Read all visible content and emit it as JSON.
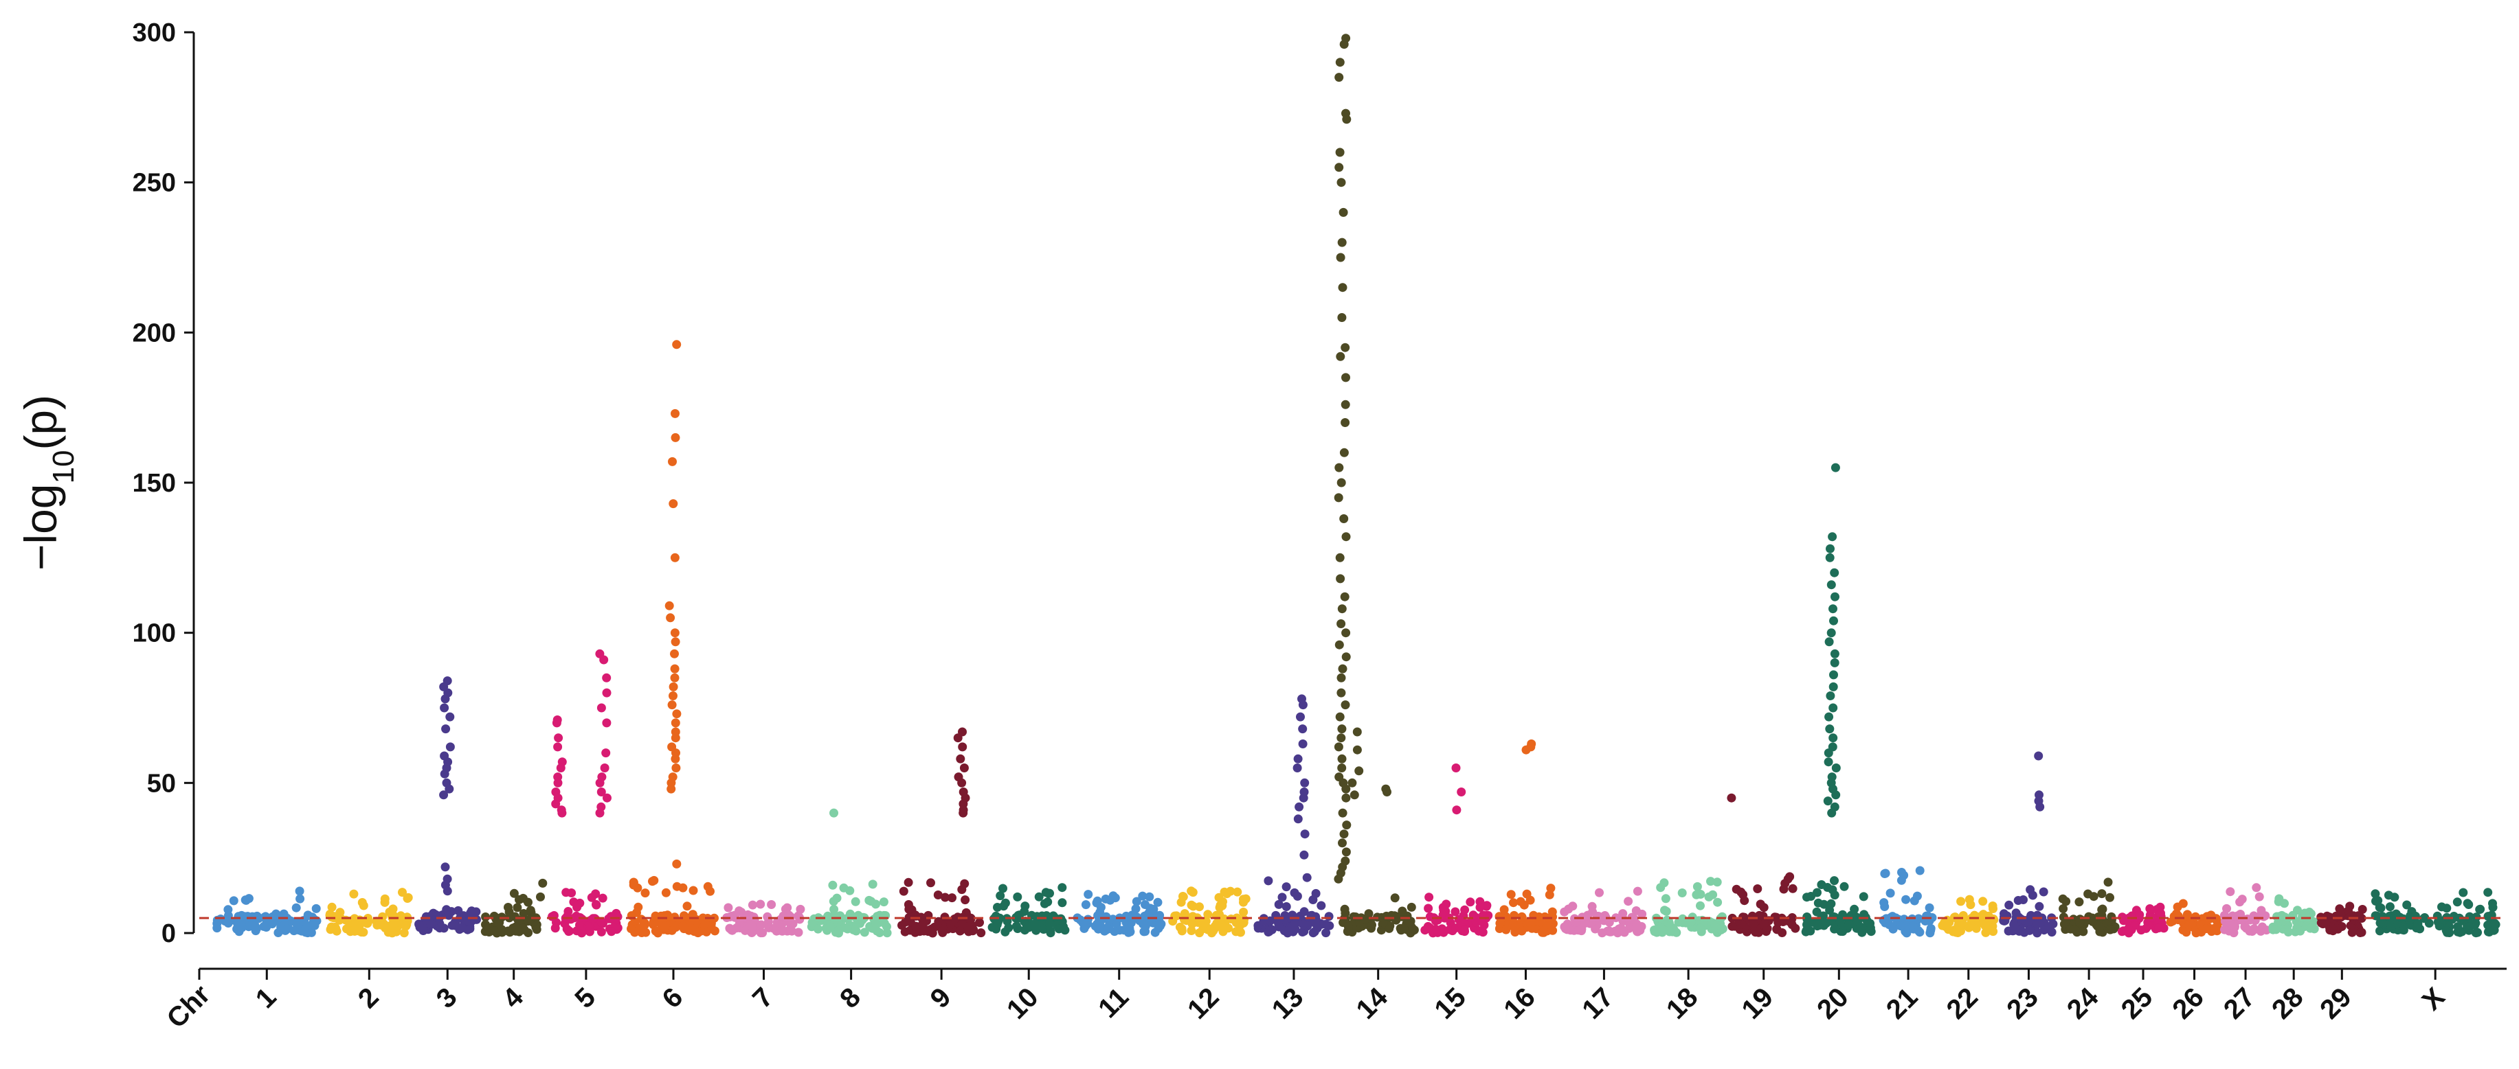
{
  "chart_data": {
    "type": "scatter",
    "subtype": "manhattan",
    "title": "",
    "ylabel": "−log10(p)",
    "ylabel_parts": {
      "prefix": "−log",
      "subscript": "10",
      "suffix": "(p)"
    },
    "xlabel": "",
    "ylim": [
      0,
      300
    ],
    "yticks": [
      0,
      50,
      100,
      150,
      200,
      250,
      300
    ],
    "x_first_label": "Chr",
    "significance_threshold": 5,
    "threshold_color": "#c0392b",
    "chromosomes": [
      {
        "label": "1",
        "color": "#4a90d0",
        "width": 1.9,
        "bg": 14,
        "peaks": []
      },
      {
        "label": "2",
        "color": "#f5c02a",
        "width": 1.5,
        "bg": 14,
        "peaks": []
      },
      {
        "label": "3",
        "color": "#4a3a8c",
        "width": 1.1,
        "bg": 8,
        "peaks": [
          {
            "pos": 0.5,
            "values": [
              84,
              82,
              80,
              78,
              75,
              72,
              68,
              62,
              59,
              57,
              55,
              53,
              50,
              48,
              46,
              22,
              18,
              16,
              14
            ]
          }
        ]
      },
      {
        "label": "4",
        "color": "#4d4a24",
        "width": 1.1,
        "bg": 17,
        "peaks": []
      },
      {
        "label": "5",
        "color": "#d81b72",
        "width": 1.3,
        "bg": 14,
        "peaks": [
          {
            "pos": 0.1,
            "values": [
              71,
              70,
              65,
              62,
              57,
              55,
              52,
              50,
              47,
              45,
              43,
              41,
              40
            ]
          },
          {
            "pos": 0.75,
            "values": [
              93,
              91,
              85,
              80,
              75,
              70,
              60,
              55,
              52,
              50,
              47,
              45,
              42,
              40
            ]
          }
        ]
      },
      {
        "label": "6",
        "color": "#e8661c",
        "width": 1.6,
        "bg": 18,
        "peaks": [
          {
            "pos": 0.5,
            "values": [
              196,
              173,
              165,
              157,
              143,
              125,
              109,
              105,
              100,
              97,
              93,
              88,
              85,
              82,
              79,
              76,
              73,
              70,
              67,
              65,
              62,
              60,
              58,
              55,
              52,
              50,
              48,
              23
            ]
          }
        ]
      },
      {
        "label": "7",
        "color": "#de7db8",
        "width": 1.4,
        "bg": 10,
        "peaks": []
      },
      {
        "label": "8",
        "color": "#7fcfa5",
        "width": 1.5,
        "bg": 17,
        "peaks": [
          {
            "pos": 0.3,
            "values": [
              40
            ]
          }
        ]
      },
      {
        "label": "9",
        "color": "#7a1a2e",
        "width": 1.5,
        "bg": 17,
        "peaks": [
          {
            "pos": 0.75,
            "values": [
              67,
              65,
              62,
              58,
              55,
              52,
              50,
              47,
              45,
              43,
              41,
              40
            ]
          }
        ]
      },
      {
        "label": "10",
        "color": "#1e6e58",
        "width": 1.4,
        "bg": 16,
        "peaks": []
      },
      {
        "label": "11",
        "color": "#4a90d0",
        "width": 1.6,
        "bg": 13,
        "peaks": []
      },
      {
        "label": "12",
        "color": "#f5c02a",
        "width": 1.4,
        "bg": 14,
        "peaks": []
      },
      {
        "label": "13",
        "color": "#4a3a8c",
        "width": 1.4,
        "bg": 20,
        "peaks": [
          {
            "pos": 0.6,
            "values": [
              78,
              76,
              72,
              68,
              63,
              58,
              55,
              50,
              47,
              45,
              42,
              38,
              33,
              26
            ]
          }
        ]
      },
      {
        "label": "14",
        "color": "#4d4a24",
        "width": 1.4,
        "bg": 14,
        "peaks": [
          {
            "pos": 0.02,
            "values": [
              298,
              296,
              290,
              285,
              273,
              271,
              260,
              255,
              250,
              240,
              230,
              225,
              215,
              205,
              195,
              192,
              185,
              176,
              170,
              160,
              155,
              150,
              145,
              138,
              132,
              125,
              118,
              112,
              108,
              103,
              100,
              96,
              92,
              88,
              85,
              80,
              76,
              72,
              68,
              65,
              62,
              58,
              55,
              52,
              50,
              48,
              45,
              40,
              36,
              33,
              30,
              27,
              24,
              22,
              20,
              18
            ]
          },
          {
            "pos": 0.2,
            "values": [
              67,
              61,
              54,
              50,
              46
            ]
          },
          {
            "pos": 0.6,
            "values": [
              48,
              47
            ]
          }
        ]
      },
      {
        "label": "15",
        "color": "#d81b72",
        "width": 1.2,
        "bg": 12,
        "peaks": [
          {
            "pos": 0.55,
            "values": [
              55,
              47,
              41
            ]
          }
        ]
      },
      {
        "label": "16",
        "color": "#e8661c",
        "width": 1.1,
        "bg": 15,
        "peaks": [
          {
            "pos": 0.55,
            "values": [
              63,
              62,
              61
            ]
          }
        ]
      },
      {
        "label": "17",
        "color": "#de7db8",
        "width": 1.5,
        "bg": 14,
        "peaks": []
      },
      {
        "label": "18",
        "color": "#7fcfa5",
        "width": 1.3,
        "bg": 18,
        "peaks": []
      },
      {
        "label": "19",
        "color": "#7a1a2e",
        "width": 1.2,
        "bg": 19,
        "peaks": [
          {
            "pos": 0.05,
            "values": [
              45
            ]
          }
        ]
      },
      {
        "label": "20",
        "color": "#1e6e58",
        "width": 1.3,
        "bg": 18,
        "peaks": [
          {
            "pos": 0.4,
            "values": [
              155,
              132,
              128,
              125,
              120,
              116,
              112,
              108,
              104,
              100,
              97,
              93,
              90,
              86,
              82,
              79,
              75,
              72,
              68,
              65,
              62,
              60,
              57,
              55,
              52,
              50,
              48,
              46,
              44,
              42,
              40
            ]
          }
        ]
      },
      {
        "label": "21",
        "color": "#4a90d0",
        "width": 1.0,
        "bg": 21,
        "peaks": []
      },
      {
        "label": "22",
        "color": "#f5c02a",
        "width": 1.0,
        "bg": 12,
        "peaks": []
      },
      {
        "label": "23",
        "color": "#4a3a8c",
        "width": 1.0,
        "bg": 16,
        "peaks": [
          {
            "pos": 0.75,
            "values": [
              59,
              46,
              44,
              42
            ]
          }
        ]
      },
      {
        "label": "24",
        "color": "#4d4a24",
        "width": 1.0,
        "bg": 18,
        "peaks": []
      },
      {
        "label": "25",
        "color": "#d81b72",
        "width": 0.8,
        "bg": 9,
        "peaks": []
      },
      {
        "label": "26",
        "color": "#e8661c",
        "width": 0.9,
        "bg": 10,
        "peaks": []
      },
      {
        "label": "27",
        "color": "#de7db8",
        "width": 0.8,
        "bg": 18,
        "peaks": []
      },
      {
        "label": "28",
        "color": "#7fcfa5",
        "width": 0.8,
        "bg": 12,
        "peaks": []
      },
      {
        "label": "29",
        "color": "#7a1a2e",
        "width": 0.8,
        "bg": 9,
        "peaks": []
      },
      {
        "label": "X",
        "color": "#1e6e58",
        "width": 2.3,
        "bg": 14,
        "peaks": []
      }
    ]
  }
}
